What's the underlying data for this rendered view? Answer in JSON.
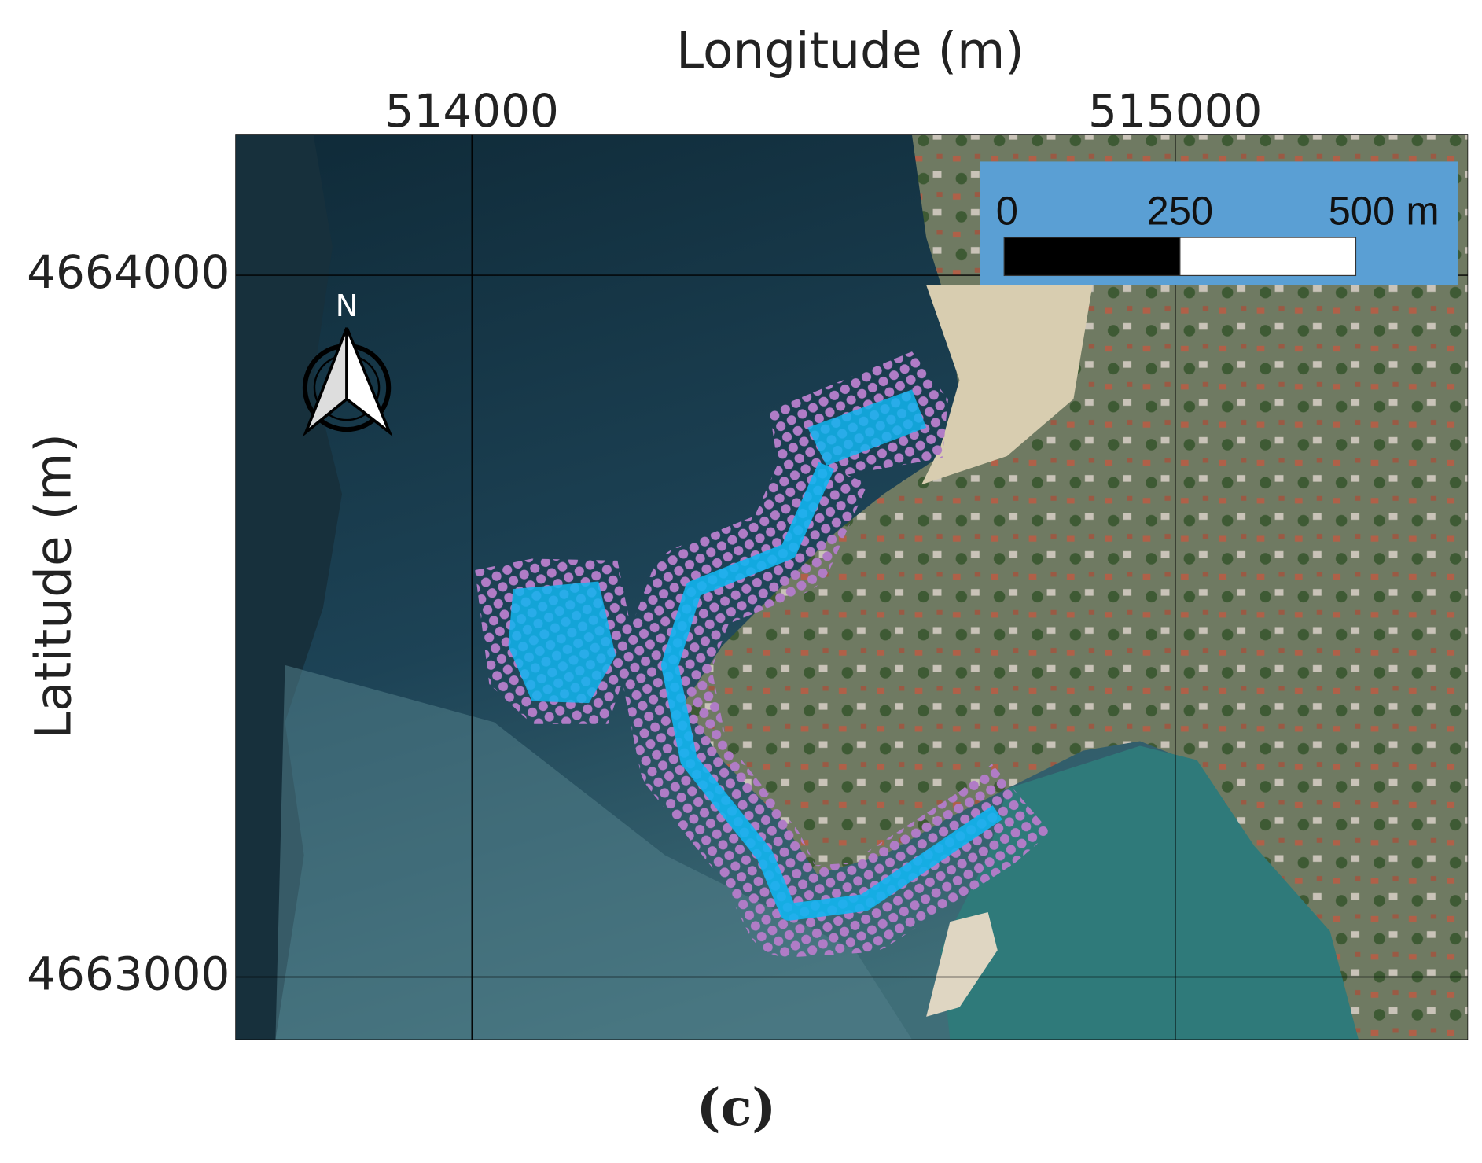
{
  "map": {
    "x_label": "Longitude (m)",
    "y_label": "Latitude (m)",
    "xlim": [
      513664,
      515416
    ],
    "ylim": [
      4662911,
      4664200
    ],
    "xticks": [
      514000,
      515000
    ],
    "yticks": [
      4663000,
      4664000
    ],
    "grid": true
  },
  "north_arrow": {
    "label": "N"
  },
  "scale_bar": {
    "ticks": [
      0,
      250,
      {
        "value": 500,
        "label": "500 m"
      }
    ]
  },
  "caption": "(c)"
}
